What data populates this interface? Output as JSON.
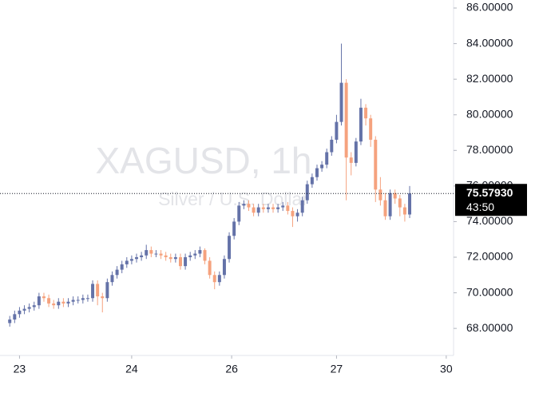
{
  "chart_data": {
    "type": "candlestick",
    "title": "XAGUSD, 1h",
    "subtitle": "Silver / U.S. Dollar",
    "up_color": "#6472a8",
    "down_color": "#f5a27e",
    "open": [
      68.3,
      68.5,
      68.8,
      69.0,
      69.1,
      69.2,
      69.3,
      69.8,
      69.7,
      69.4,
      69.3,
      69.5,
      69.4,
      69.5,
      69.6,
      69.6,
      69.7,
      69.7,
      70.5,
      69.8,
      69.7,
      70.6,
      71.0,
      71.3,
      71.6,
      71.8,
      71.9,
      72.0,
      72.1,
      72.4,
      72.2,
      72.2,
      72.1,
      72.0,
      71.9,
      72.0,
      71.5,
      72.0,
      72.1,
      72.2,
      72.4,
      71.8,
      71.0,
      70.6,
      71.0,
      71.9,
      73.2,
      74.0,
      74.9,
      75.0,
      74.8,
      74.5,
      74.8,
      74.7,
      74.8,
      74.7,
      74.8,
      74.9,
      74.6,
      74.3,
      74.5,
      75.2,
      76.1,
      76.5,
      77.0,
      77.2,
      77.9,
      78.6,
      79.6,
      81.8,
      77.6,
      77.3,
      78.5,
      80.4,
      79.8,
      78.6,
      75.8,
      75.2,
      74.3,
      75.6,
      75.3,
      74.8,
      74.4
    ],
    "high": [
      68.7,
      69.0,
      69.2,
      69.3,
      69.4,
      69.5,
      70.0,
      70.0,
      69.9,
      69.6,
      69.7,
      69.7,
      69.7,
      69.8,
      69.8,
      69.9,
      69.9,
      70.7,
      70.7,
      70.0,
      70.8,
      71.2,
      71.5,
      71.8,
      72.0,
      72.1,
      72.2,
      72.3,
      72.7,
      72.6,
      72.4,
      72.4,
      72.3,
      72.2,
      72.2,
      72.2,
      72.2,
      72.3,
      72.4,
      72.6,
      72.5,
      72.0,
      71.2,
      71.2,
      72.1,
      73.4,
      74.2,
      75.1,
      75.2,
      75.2,
      75.0,
      75.0,
      75.0,
      75.0,
      75.0,
      75.0,
      75.1,
      75.1,
      74.8,
      74.7,
      75.4,
      76.3,
      76.7,
      77.2,
      77.4,
      78.1,
      78.8,
      80.0,
      84.0,
      82.0,
      77.9,
      78.7,
      80.9,
      80.6,
      80.0,
      78.8,
      76.5,
      75.6,
      75.8,
      75.8,
      75.5,
      75.0,
      76.0
    ],
    "low": [
      68.1,
      68.3,
      68.6,
      68.8,
      68.9,
      69.0,
      69.1,
      69.5,
      69.2,
      69.1,
      69.1,
      69.2,
      69.2,
      69.3,
      69.4,
      69.4,
      69.5,
      69.5,
      69.3,
      68.9,
      69.5,
      70.4,
      70.8,
      71.1,
      71.4,
      71.6,
      71.7,
      71.8,
      71.9,
      72.0,
      72.0,
      71.9,
      71.8,
      71.7,
      71.7,
      71.3,
      71.3,
      71.8,
      71.9,
      72.0,
      71.6,
      70.8,
      70.2,
      70.4,
      70.8,
      71.7,
      73.0,
      73.8,
      74.7,
      74.6,
      74.3,
      74.3,
      74.5,
      74.5,
      74.5,
      74.5,
      74.6,
      74.4,
      73.7,
      74.0,
      74.3,
      75.0,
      75.9,
      76.3,
      76.8,
      77.0,
      77.7,
      78.4,
      79.4,
      75.2,
      76.6,
      77.1,
      78.3,
      79.4,
      78.2,
      75.1,
      74.9,
      74.1,
      74.1,
      75.0,
      74.3,
      74.0,
      74.2
    ],
    "close": [
      68.5,
      68.8,
      69.0,
      69.1,
      69.2,
      69.3,
      69.8,
      69.7,
      69.4,
      69.3,
      69.5,
      69.4,
      69.5,
      69.6,
      69.6,
      69.7,
      69.7,
      70.5,
      69.8,
      69.7,
      70.6,
      71.0,
      71.3,
      71.6,
      71.8,
      71.9,
      72.0,
      72.1,
      72.4,
      72.2,
      72.2,
      72.1,
      72.0,
      71.9,
      72.0,
      71.5,
      72.0,
      72.1,
      72.2,
      72.4,
      71.8,
      71.0,
      70.6,
      71.0,
      71.9,
      73.2,
      74.0,
      74.9,
      75.0,
      74.8,
      74.5,
      74.8,
      74.7,
      74.8,
      74.7,
      74.8,
      74.9,
      74.6,
      74.3,
      74.5,
      75.2,
      76.1,
      76.5,
      77.0,
      77.2,
      77.9,
      78.6,
      79.6,
      81.8,
      77.6,
      77.3,
      78.5,
      80.4,
      79.8,
      78.6,
      75.8,
      75.2,
      74.3,
      75.6,
      75.3,
      74.8,
      74.4,
      75.5793
    ],
    "xlim": [
      -2,
      91
    ],
    "xticks": [
      {
        "value": 2,
        "label": "23"
      },
      {
        "value": 25,
        "label": "24"
      },
      {
        "value": 45.5,
        "label": "26"
      },
      {
        "value": 67,
        "label": "27"
      },
      {
        "value": 89.5,
        "label": "30"
      }
    ],
    "ylim": [
      66.48,
      86.45
    ],
    "yticks": [
      {
        "value": 68,
        "label": "68.00000"
      },
      {
        "value": 70,
        "label": "70.00000"
      },
      {
        "value": 72,
        "label": "72.00000"
      },
      {
        "value": 74,
        "label": "74.00000"
      },
      {
        "value": 76,
        "label": "76.00000"
      },
      {
        "value": 78,
        "label": "78.00000"
      },
      {
        "value": 80,
        "label": "80.00000"
      },
      {
        "value": 82,
        "label": "82.00000"
      },
      {
        "value": 84,
        "label": "84.00000"
      },
      {
        "value": 86,
        "label": "86.00000"
      }
    ],
    "last_price": {
      "value": 75.5793,
      "label": "75.57930"
    },
    "countdown": "43:50"
  }
}
